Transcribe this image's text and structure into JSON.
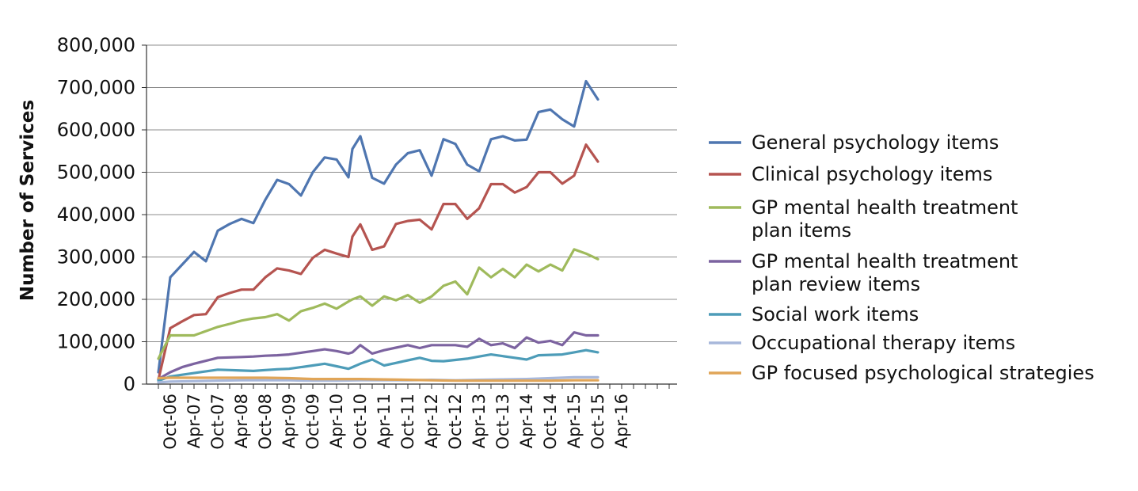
{
  "chart_data": {
    "type": "line",
    "title": "",
    "xlabel": "",
    "ylabel": "Number of Services",
    "ylim": [
      0,
      800000
    ],
    "yticks": [
      "0",
      "100,000",
      "200,000",
      "300,000",
      "400,000",
      "500,000",
      "600,000",
      "700,000",
      "800,000"
    ],
    "xticks": [
      "Oct-06",
      "Apr-07",
      "Oct-07",
      "Apr-08",
      "Oct-08",
      "Apr-09",
      "Oct-09",
      "Apr-10",
      "Oct-10",
      "Apr-11",
      "Oct-11",
      "Apr-12",
      "Oct-12",
      "Apr-13",
      "Oct-13",
      "Apr-14",
      "Oct-14",
      "Apr-15",
      "Oct-15",
      "Apr-16"
    ],
    "grid": "horizontal",
    "legend_position": "right",
    "series": [
      {
        "name": "General psychology items",
        "color": "#4f76b0",
        "points": [
          [
            "Jul-06",
            28000
          ],
          [
            "Oct-06",
            252000
          ],
          [
            "Jan-07",
            282000
          ],
          [
            "Apr-07",
            312000
          ],
          [
            "Jul-07",
            290000
          ],
          [
            "Oct-07",
            362000
          ],
          [
            "Jan-08",
            378000
          ],
          [
            "Apr-08",
            390000
          ],
          [
            "Jul-08",
            380000
          ],
          [
            "Oct-08",
            435000
          ],
          [
            "Jan-09",
            482000
          ],
          [
            "Apr-09",
            472000
          ],
          [
            "Jul-09",
            445000
          ],
          [
            "Oct-09",
            500000
          ],
          [
            "Jan-10",
            535000
          ],
          [
            "Apr-10",
            530000
          ],
          [
            "Jul-10",
            488000
          ],
          [
            "Aug-10",
            555000
          ],
          [
            "Oct-10",
            585000
          ],
          [
            "Jan-11",
            487000
          ],
          [
            "Apr-11",
            473000
          ],
          [
            "Jul-11",
            518000
          ],
          [
            "Oct-11",
            545000
          ],
          [
            "Jan-12",
            552000
          ],
          [
            "Apr-12",
            492000
          ],
          [
            "Jul-12",
            578000
          ],
          [
            "Oct-12",
            567000
          ],
          [
            "Jan-13",
            518000
          ],
          [
            "Apr-13",
            502000
          ],
          [
            "Jul-13",
            578000
          ],
          [
            "Oct-13",
            585000
          ],
          [
            "Jan-14",
            575000
          ],
          [
            "Apr-14",
            577000
          ],
          [
            "Jul-14",
            642000
          ],
          [
            "Oct-14",
            648000
          ],
          [
            "Jan-15",
            625000
          ],
          [
            "Apr-15",
            608000
          ],
          [
            "Jul-15",
            715000
          ],
          [
            "Oct-15",
            672000
          ]
        ]
      },
      {
        "name": "Clinical psychology items",
        "color": "#b55450",
        "points": [
          [
            "Jul-06",
            10000
          ],
          [
            "Oct-06",
            132000
          ],
          [
            "Jan-07",
            148000
          ],
          [
            "Apr-07",
            163000
          ],
          [
            "Jul-07",
            165000
          ],
          [
            "Oct-07",
            205000
          ],
          [
            "Jan-08",
            215000
          ],
          [
            "Apr-08",
            223000
          ],
          [
            "Jul-08",
            223000
          ],
          [
            "Oct-08",
            252000
          ],
          [
            "Jan-09",
            273000
          ],
          [
            "Apr-09",
            268000
          ],
          [
            "Jul-09",
            260000
          ],
          [
            "Oct-09",
            298000
          ],
          [
            "Jan-10",
            317000
          ],
          [
            "Apr-10",
            308000
          ],
          [
            "Jul-10",
            300000
          ],
          [
            "Aug-10",
            348000
          ],
          [
            "Oct-10",
            377000
          ],
          [
            "Jan-11",
            317000
          ],
          [
            "Apr-11",
            325000
          ],
          [
            "Jul-11",
            378000
          ],
          [
            "Oct-11",
            385000
          ],
          [
            "Jan-12",
            388000
          ],
          [
            "Apr-12",
            365000
          ],
          [
            "Jul-12",
            425000
          ],
          [
            "Oct-12",
            425000
          ],
          [
            "Jan-13",
            390000
          ],
          [
            "Apr-13",
            415000
          ],
          [
            "Jul-13",
            472000
          ],
          [
            "Oct-13",
            472000
          ],
          [
            "Jan-14",
            452000
          ],
          [
            "Apr-14",
            465000
          ],
          [
            "Jul-14",
            500000
          ],
          [
            "Oct-14",
            500000
          ],
          [
            "Jan-15",
            473000
          ],
          [
            "Apr-15",
            492000
          ],
          [
            "Jul-15",
            565000
          ],
          [
            "Oct-15",
            525000
          ]
        ]
      },
      {
        "name": "GP mental health treatment plan items",
        "color": "#9fba5c",
        "points": [
          [
            "Jul-06",
            60000
          ],
          [
            "Oct-06",
            115000
          ],
          [
            "Jan-07",
            115000
          ],
          [
            "Apr-07",
            115000
          ],
          [
            "Jul-07",
            125000
          ],
          [
            "Oct-07",
            135000
          ],
          [
            "Jan-08",
            142000
          ],
          [
            "Apr-08",
            150000
          ],
          [
            "Jul-08",
            155000
          ],
          [
            "Oct-08",
            158000
          ],
          [
            "Jan-09",
            165000
          ],
          [
            "Apr-09",
            150000
          ],
          [
            "Jul-09",
            172000
          ],
          [
            "Oct-09",
            180000
          ],
          [
            "Jan-10",
            190000
          ],
          [
            "Apr-10",
            178000
          ],
          [
            "Jul-10",
            195000
          ],
          [
            "Aug-10",
            200000
          ],
          [
            "Oct-10",
            207000
          ],
          [
            "Jan-11",
            185000
          ],
          [
            "Apr-11",
            207000
          ],
          [
            "Jul-11",
            198000
          ],
          [
            "Oct-11",
            210000
          ],
          [
            "Jan-12",
            192000
          ],
          [
            "Apr-12",
            207000
          ],
          [
            "Jul-12",
            232000
          ],
          [
            "Oct-12",
            242000
          ],
          [
            "Jan-13",
            212000
          ],
          [
            "Apr-13",
            275000
          ],
          [
            "Jul-13",
            252000
          ],
          [
            "Oct-13",
            272000
          ],
          [
            "Jan-14",
            252000
          ],
          [
            "Apr-14",
            282000
          ],
          [
            "Jul-14",
            266000
          ],
          [
            "Oct-14",
            282000
          ],
          [
            "Jan-15",
            268000
          ],
          [
            "Apr-15",
            318000
          ],
          [
            "Jul-15",
            308000
          ],
          [
            "Oct-15",
            295000
          ]
        ]
      },
      {
        "name": "GP mental health treatment plan review items",
        "color": "#7c63a0",
        "points": [
          [
            "Jul-06",
            12000
          ],
          [
            "Oct-06",
            28000
          ],
          [
            "Jan-07",
            40000
          ],
          [
            "Apr-07",
            48000
          ],
          [
            "Jul-07",
            55000
          ],
          [
            "Oct-07",
            62000
          ],
          [
            "Jan-08",
            63000
          ],
          [
            "Apr-08",
            64000
          ],
          [
            "Jul-08",
            65000
          ],
          [
            "Oct-08",
            67000
          ],
          [
            "Jan-09",
            68000
          ],
          [
            "Apr-09",
            70000
          ],
          [
            "Jul-09",
            74000
          ],
          [
            "Oct-09",
            78000
          ],
          [
            "Jan-10",
            82000
          ],
          [
            "Apr-10",
            78000
          ],
          [
            "Jul-10",
            72000
          ],
          [
            "Aug-10",
            75000
          ],
          [
            "Oct-10",
            92000
          ],
          [
            "Jan-11",
            72000
          ],
          [
            "Apr-11",
            80000
          ],
          [
            "Jul-11",
            86000
          ],
          [
            "Oct-11",
            92000
          ],
          [
            "Jan-12",
            85000
          ],
          [
            "Apr-12",
            92000
          ],
          [
            "Jul-12",
            92000
          ],
          [
            "Oct-12",
            92000
          ],
          [
            "Jan-13",
            88000
          ],
          [
            "Apr-13",
            107000
          ],
          [
            "Jul-13",
            92000
          ],
          [
            "Oct-13",
            96000
          ],
          [
            "Jan-14",
            85000
          ],
          [
            "Apr-14",
            110000
          ],
          [
            "Jul-14",
            98000
          ],
          [
            "Oct-14",
            102000
          ],
          [
            "Jan-15",
            92000
          ],
          [
            "Apr-15",
            122000
          ],
          [
            "Jul-15",
            115000
          ],
          [
            "Oct-15",
            115000
          ]
        ]
      },
      {
        "name": "Social work items",
        "color": "#4d9cb8",
        "points": [
          [
            "Jul-06",
            8000
          ],
          [
            "Oct-06",
            18000
          ],
          [
            "Jan-07",
            22000
          ],
          [
            "Apr-07",
            26000
          ],
          [
            "Jul-07",
            30000
          ],
          [
            "Oct-07",
            34000
          ],
          [
            "Jan-08",
            33000
          ],
          [
            "Apr-08",
            32000
          ],
          [
            "Jul-08",
            31000
          ],
          [
            "Oct-08",
            33000
          ],
          [
            "Jan-09",
            35000
          ],
          [
            "Apr-09",
            36000
          ],
          [
            "Jul-09",
            40000
          ],
          [
            "Oct-09",
            44000
          ],
          [
            "Jan-10",
            48000
          ],
          [
            "Apr-10",
            42000
          ],
          [
            "Jul-10",
            36000
          ],
          [
            "Aug-10",
            40000
          ],
          [
            "Oct-10",
            48000
          ],
          [
            "Jan-11",
            58000
          ],
          [
            "Apr-11",
            44000
          ],
          [
            "Jul-11",
            50000
          ],
          [
            "Oct-11",
            56000
          ],
          [
            "Jan-12",
            62000
          ],
          [
            "Apr-12",
            55000
          ],
          [
            "Jul-12",
            54000
          ],
          [
            "Oct-12",
            57000
          ],
          [
            "Jan-13",
            60000
          ],
          [
            "Apr-13",
            65000
          ],
          [
            "Jul-13",
            70000
          ],
          [
            "Oct-13",
            66000
          ],
          [
            "Jan-14",
            62000
          ],
          [
            "Apr-14",
            58000
          ],
          [
            "Jul-14",
            68000
          ],
          [
            "Oct-14",
            69000
          ],
          [
            "Jan-15",
            70000
          ],
          [
            "Apr-15",
            75000
          ],
          [
            "Jul-15",
            80000
          ],
          [
            "Oct-15",
            75000
          ]
        ]
      },
      {
        "name": "Occupational therapy items",
        "color": "#a8b8db",
        "points": [
          [
            "Jul-06",
            4000
          ],
          [
            "Oct-06",
            6000
          ],
          [
            "Apr-07",
            7000
          ],
          [
            "Oct-07",
            8000
          ],
          [
            "Apr-08",
            9000
          ],
          [
            "Oct-08",
            9000
          ],
          [
            "Apr-09",
            9000
          ],
          [
            "Oct-09",
            8000
          ],
          [
            "Apr-10",
            8000
          ],
          [
            "Oct-10",
            9000
          ],
          [
            "Apr-11",
            9000
          ],
          [
            "Oct-11",
            9000
          ],
          [
            "Apr-12",
            10000
          ],
          [
            "Oct-12",
            9000
          ],
          [
            "Apr-13",
            10000
          ],
          [
            "Oct-13",
            11000
          ],
          [
            "Apr-14",
            12000
          ],
          [
            "Oct-14",
            14000
          ],
          [
            "Apr-15",
            16000
          ],
          [
            "Oct-15",
            16000
          ]
        ]
      },
      {
        "name": "GP focused psychological strategies",
        "color": "#e0a558",
        "points": [
          [
            "Jul-06",
            14000
          ],
          [
            "Oct-06",
            15000
          ],
          [
            "Apr-07",
            15000
          ],
          [
            "Oct-07",
            15000
          ],
          [
            "Apr-08",
            15000
          ],
          [
            "Oct-08",
            15000
          ],
          [
            "Apr-09",
            14000
          ],
          [
            "Oct-09",
            12000
          ],
          [
            "Apr-10",
            12000
          ],
          [
            "Oct-10",
            12000
          ],
          [
            "Apr-11",
            11000
          ],
          [
            "Oct-11",
            10000
          ],
          [
            "Apr-12",
            9000
          ],
          [
            "Oct-12",
            8000
          ],
          [
            "Apr-13",
            8000
          ],
          [
            "Oct-13",
            8000
          ],
          [
            "Apr-14",
            8000
          ],
          [
            "Oct-14",
            8000
          ],
          [
            "Apr-15",
            9000
          ],
          [
            "Oct-15",
            9000
          ]
        ]
      }
    ],
    "legend_entries": [
      [
        "General psychology items"
      ],
      [
        "Clinical psychology items"
      ],
      [
        "GP mental health treatment",
        "plan items"
      ],
      [
        "GP mental health treatment",
        "plan review items"
      ],
      [
        "Social work items"
      ],
      [
        "Occupational therapy items"
      ],
      [
        "GP focused psychological strategies"
      ]
    ]
  }
}
